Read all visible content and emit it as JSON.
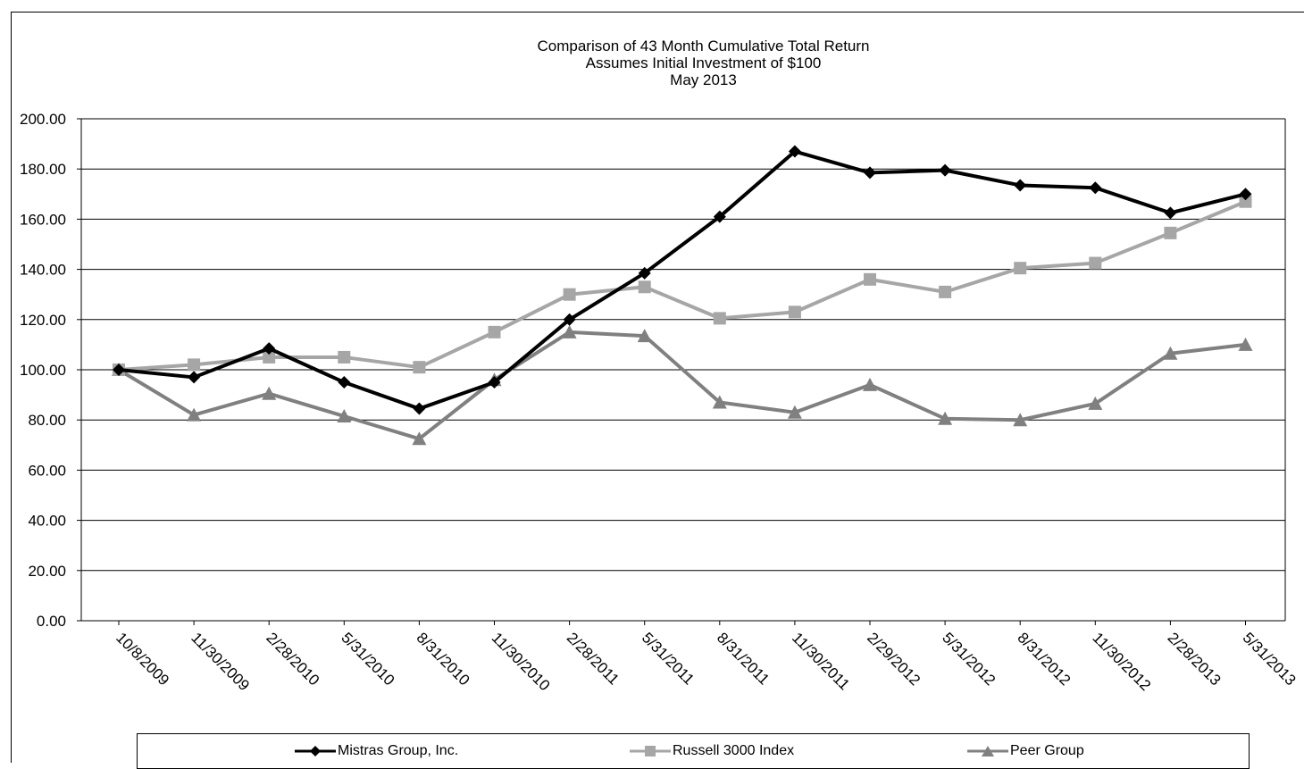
{
  "chart_data": {
    "type": "line",
    "title": "Comparison of 43 Month Cumulative Total Return",
    "subtitle": [
      "Assumes Initial Investment of $100",
      "May 2013"
    ],
    "xlabel": "",
    "ylabel": "",
    "ylim": [
      0,
      200
    ],
    "yticks": [
      "0.00",
      "20.00",
      "40.00",
      "60.00",
      "80.00",
      "100.00",
      "120.00",
      "140.00",
      "160.00",
      "180.00",
      "200.00"
    ],
    "grid": true,
    "legend_position": "bottom",
    "categories": [
      "10/8/2009",
      "11/30/2009",
      "2/28/2010",
      "5/31/2010",
      "8/31/2010",
      "11/30/2010",
      "2/28/2011",
      "5/31/2011",
      "8/31/2011",
      "11/30/2011",
      "2/29/2012",
      "5/31/2012",
      "8/31/2012",
      "11/30/2012",
      "2/28/2013",
      "5/31/2013"
    ],
    "series": [
      {
        "name": "Mistras Group, Inc.",
        "color": "#000000",
        "marker": "diamond",
        "values": [
          100.0,
          97.0,
          108.5,
          95.0,
          84.5,
          95.0,
          120.0,
          138.5,
          161.0,
          187.0,
          178.5,
          179.5,
          173.5,
          172.5,
          162.5,
          170.0
        ]
      },
      {
        "name": "Russell 3000 Index",
        "color": "#a6a6a6",
        "marker": "square",
        "values": [
          100.0,
          102.0,
          105.0,
          105.0,
          101.0,
          115.0,
          130.0,
          133.0,
          120.5,
          123.0,
          136.0,
          131.0,
          140.5,
          142.5,
          154.5,
          167.0
        ]
      },
      {
        "name": "Peer Group",
        "color": "#808080",
        "marker": "triangle",
        "values": [
          100.0,
          82.0,
          90.5,
          81.5,
          72.5,
          96.0,
          115.0,
          113.5,
          87.0,
          83.0,
          94.0,
          80.5,
          80.0,
          86.5,
          106.5,
          110.0
        ]
      }
    ]
  }
}
